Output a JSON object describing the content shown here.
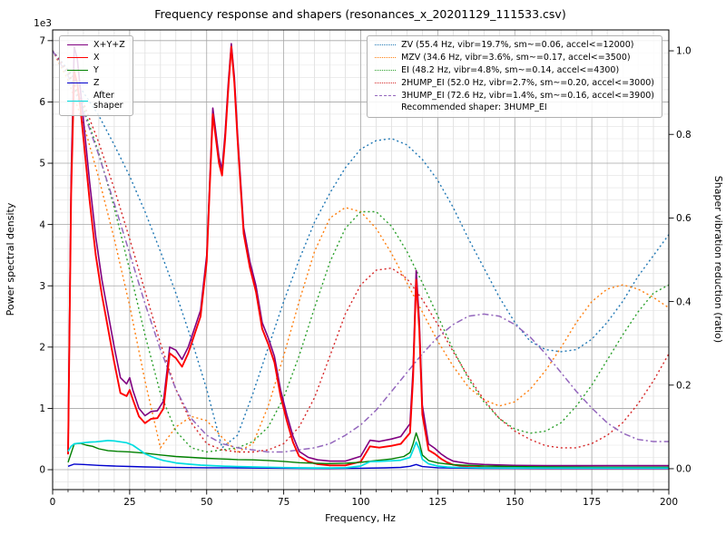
{
  "chart_data": {
    "type": "line",
    "title": "Frequency response and shapers (resonances_x_20201129_111533.csv)",
    "xlabel": "Frequency, Hz",
    "ylabel_left": "Power spectral density",
    "ylabel_right": "Shaper vibration reduction (ratio)",
    "offset_text": "1e3",
    "xlim": [
      0,
      200
    ],
    "x_major_ticks": [
      0,
      25,
      50,
      75,
      100,
      125,
      150,
      175,
      200
    ],
    "x_minor_step": 5,
    "ylim_left": [
      -325,
      7175
    ],
    "y_major_ticks_left": [
      0,
      1000,
      2000,
      3000,
      4000,
      5000,
      6000,
      7000
    ],
    "y_tick_labels_left": [
      "0",
      "1",
      "2",
      "3",
      "4",
      "5",
      "6",
      "7"
    ],
    "y_minor_step_left": 200,
    "ylim_right": [
      -0.05,
      1.05
    ],
    "y_major_ticks_right": [
      0.0,
      0.2,
      0.4,
      0.6,
      0.8,
      1.0
    ],
    "y_tick_labels_right": [
      "0.0",
      "0.2",
      "0.4",
      "0.6",
      "0.8",
      "1.0"
    ],
    "grid": "both",
    "legend_psd_position": "upper-left",
    "legend_shaper_position": "upper-right",
    "recommended_label": "Recommended shaper: 3HUMP_EI",
    "psd_series": [
      {
        "name": "X+Y+Z",
        "legend": "X+Y+Z",
        "color": "#800080",
        "style": "solid",
        "w": 1.6,
        "x": [
          5,
          6,
          7,
          8,
          9,
          10,
          12,
          14,
          16,
          18,
          20,
          22,
          24,
          25,
          26,
          28,
          30,
          32,
          34,
          36,
          38,
          40,
          42,
          44,
          46,
          48,
          50,
          51,
          52,
          53,
          54,
          55,
          56,
          57,
          58,
          59,
          60,
          62,
          64,
          66,
          68,
          70,
          72,
          74,
          76,
          78,
          80,
          83,
          86,
          90,
          95,
          100,
          103,
          106,
          110,
          113,
          116,
          117,
          118,
          119,
          120,
          122,
          124,
          126,
          128,
          130,
          135,
          140,
          150,
          160,
          170,
          180,
          190,
          200
        ],
        "y": [
          300,
          4800,
          6900,
          6700,
          6200,
          5700,
          4700,
          3800,
          3100,
          2550,
          2000,
          1500,
          1400,
          1500,
          1300,
          1000,
          880,
          950,
          960,
          1120,
          2000,
          1950,
          1800,
          2000,
          2300,
          2600,
          3500,
          4700,
          5900,
          5500,
          5100,
          4900,
          5500,
          6300,
          6950,
          6400,
          5500,
          3950,
          3400,
          3000,
          2400,
          2150,
          1850,
          1300,
          900,
          550,
          300,
          200,
          160,
          140,
          140,
          220,
          480,
          460,
          500,
          540,
          750,
          1650,
          3250,
          2450,
          1050,
          420,
          350,
          260,
          190,
          140,
          100,
          85,
          70,
          65,
          65,
          65,
          65,
          65
        ]
      },
      {
        "name": "X",
        "legend": "X",
        "color": "#ff0000",
        "style": "solid",
        "w": 1.9,
        "x": [
          5,
          6,
          7,
          8,
          9,
          10,
          12,
          14,
          16,
          18,
          20,
          22,
          24,
          25,
          26,
          28,
          30,
          32,
          34,
          36,
          38,
          40,
          42,
          44,
          46,
          48,
          50,
          51,
          52,
          53,
          54,
          55,
          56,
          57,
          58,
          59,
          60,
          62,
          64,
          66,
          68,
          70,
          72,
          74,
          76,
          78,
          80,
          83,
          86,
          90,
          95,
          100,
          103,
          106,
          110,
          113,
          116,
          117,
          118,
          119,
          120,
          122,
          124,
          126,
          128,
          130,
          135,
          140,
          150,
          160,
          170,
          180,
          190,
          200
        ],
        "y": [
          250,
          4500,
          6500,
          6300,
          5900,
          5400,
          4400,
          3500,
          2850,
          2300,
          1750,
          1250,
          1200,
          1300,
          1150,
          870,
          760,
          830,
          840,
          1000,
          1900,
          1820,
          1680,
          1900,
          2200,
          2500,
          3400,
          4600,
          5800,
          5400,
          5000,
          4800,
          5400,
          6200,
          6900,
          6300,
          5400,
          3850,
          3300,
          2900,
          2300,
          2050,
          1750,
          1200,
          800,
          450,
          220,
          130,
          90,
          70,
          70,
          130,
          380,
          360,
          390,
          420,
          600,
          1500,
          3100,
          2300,
          900,
          320,
          260,
          180,
          120,
          80,
          45,
          35,
          28,
          26,
          25,
          25,
          25,
          25
        ]
      },
      {
        "name": "Y",
        "legend": "Y",
        "color": "#008000",
        "style": "solid",
        "w": 1.4,
        "x": [
          5,
          7,
          9,
          11,
          13,
          15,
          18,
          21,
          25,
          30,
          35,
          40,
          45,
          50,
          55,
          60,
          65,
          70,
          75,
          80,
          85,
          90,
          95,
          100,
          105,
          110,
          114,
          116,
          117,
          118,
          119,
          120,
          122,
          125,
          130,
          140,
          150,
          160,
          170,
          180,
          190,
          200
        ],
        "y": [
          120,
          420,
          430,
          400,
          380,
          340,
          310,
          300,
          290,
          270,
          240,
          215,
          200,
          185,
          175,
          165,
          160,
          150,
          135,
          115,
          105,
          100,
          105,
          120,
          150,
          175,
          215,
          280,
          420,
          600,
          450,
          240,
          150,
          110,
          80,
          60,
          50,
          45,
          42,
          40,
          40,
          40
        ]
      },
      {
        "name": "Z",
        "legend": "Z",
        "color": "#0000cd",
        "style": "solid",
        "w": 1.4,
        "x": [
          5,
          7,
          10,
          15,
          20,
          25,
          30,
          35,
          40,
          50,
          60,
          70,
          80,
          90,
          100,
          108,
          113,
          116,
          118,
          120,
          125,
          130,
          140,
          160,
          180,
          200
        ],
        "y": [
          55,
          90,
          85,
          70,
          60,
          52,
          45,
          40,
          36,
          32,
          30,
          26,
          22,
          20,
          24,
          30,
          38,
          55,
          85,
          50,
          32,
          27,
          22,
          20,
          20,
          20
        ]
      },
      {
        "name": "After shaper",
        "legend": "After\nshaper",
        "color": "#00dde0",
        "style": "solid",
        "w": 1.7,
        "x": [
          5,
          6,
          7,
          8,
          10,
          12,
          14,
          16,
          18,
          20,
          22,
          24,
          26,
          28,
          30,
          32,
          34,
          36,
          38,
          40,
          44,
          48,
          52,
          56,
          60,
          65,
          70,
          75,
          80,
          85,
          90,
          95,
          100,
          103,
          106,
          110,
          113,
          116,
          117,
          118,
          119,
          120,
          122,
          125,
          128,
          130,
          135,
          140,
          150,
          160,
          170,
          180,
          190,
          200
        ],
        "y": [
          300,
          380,
          420,
          430,
          440,
          450,
          455,
          465,
          475,
          470,
          455,
          440,
          400,
          330,
          260,
          215,
          180,
          150,
          130,
          110,
          90,
          75,
          65,
          57,
          50,
          45,
          40,
          35,
          30,
          28,
          28,
          32,
          60,
          130,
          135,
          145,
          155,
          200,
          320,
          450,
          340,
          170,
          95,
          60,
          45,
          40,
          34,
          30,
          28,
          27,
          27,
          27,
          27,
          27
        ]
      }
    ],
    "shaper_x": [
      0,
      5,
      10,
      15,
      20,
      25,
      30,
      35,
      40,
      45,
      50,
      55,
      60,
      65,
      70,
      75,
      80,
      85,
      90,
      95,
      100,
      105,
      110,
      115,
      120,
      125,
      130,
      135,
      140,
      145,
      150,
      155,
      160,
      165,
      170,
      175,
      180,
      185,
      190,
      195,
      200
    ],
    "shaper_series": [
      {
        "name": "ZV",
        "label": "ZV (55.4 Hz, vibr=19.7%, sm~=0.06, accel<=12000)",
        "color": "#1f77b4",
        "style": "dotted",
        "w": 1.4,
        "y": [
          1.0,
          0.955,
          0.9,
          0.845,
          0.775,
          0.7,
          0.615,
          0.52,
          0.42,
          0.31,
          0.19,
          0.05,
          0.08,
          0.18,
          0.29,
          0.4,
          0.5,
          0.59,
          0.66,
          0.72,
          0.765,
          0.785,
          0.79,
          0.775,
          0.74,
          0.69,
          0.625,
          0.55,
          0.48,
          0.41,
          0.35,
          0.305,
          0.285,
          0.28,
          0.285,
          0.31,
          0.35,
          0.4,
          0.46,
          0.51,
          0.56
        ]
      },
      {
        "name": "MZV",
        "label": "MZV (34.6 Hz, vibr=3.6%, sm~=0.17, accel<=3500)",
        "color": "#ff7f0e",
        "style": "dotted",
        "w": 1.4,
        "y": [
          1.0,
          0.93,
          0.825,
          0.695,
          0.55,
          0.39,
          0.21,
          0.05,
          0.1,
          0.125,
          0.115,
          0.075,
          0.04,
          0.06,
          0.15,
          0.27,
          0.4,
          0.52,
          0.6,
          0.625,
          0.615,
          0.575,
          0.515,
          0.445,
          0.375,
          0.305,
          0.245,
          0.195,
          0.165,
          0.15,
          0.16,
          0.19,
          0.235,
          0.29,
          0.35,
          0.4,
          0.43,
          0.44,
          0.43,
          0.41,
          0.385
        ]
      },
      {
        "name": "EI",
        "label": "EI (48.2 Hz, vibr=4.8%, sm~=0.14, accel<=4300)",
        "color": "#2ca02c",
        "style": "dotted",
        "w": 1.4,
        "y": [
          1.0,
          0.945,
          0.865,
          0.755,
          0.625,
          0.475,
          0.32,
          0.18,
          0.09,
          0.05,
          0.04,
          0.045,
          0.05,
          0.065,
          0.1,
          0.17,
          0.27,
          0.385,
          0.495,
          0.575,
          0.615,
          0.615,
          0.58,
          0.52,
          0.445,
          0.365,
          0.285,
          0.215,
          0.16,
          0.12,
          0.095,
          0.085,
          0.09,
          0.11,
          0.15,
          0.2,
          0.26,
          0.32,
          0.375,
          0.42,
          0.44
        ]
      },
      {
        "name": "2HUMP_EI",
        "label": "2HUMP_EI (52.0 Hz, vibr=2.7%, sm~=0.20, accel<=3000)",
        "color": "#d62728",
        "style": "dotted",
        "w": 1.4,
        "y": [
          1.0,
          0.95,
          0.875,
          0.78,
          0.67,
          0.55,
          0.425,
          0.3,
          0.19,
          0.11,
          0.06,
          0.045,
          0.04,
          0.04,
          0.045,
          0.06,
          0.1,
          0.17,
          0.27,
          0.37,
          0.44,
          0.475,
          0.48,
          0.455,
          0.405,
          0.345,
          0.28,
          0.22,
          0.165,
          0.12,
          0.09,
          0.07,
          0.055,
          0.05,
          0.05,
          0.06,
          0.08,
          0.11,
          0.155,
          0.21,
          0.275
        ]
      },
      {
        "name": "3HUMP_EI",
        "label": "3HUMP_EI (72.6 Hz, vibr=1.4%, sm~=0.16, accel<=3900)",
        "color": "#9467bd",
        "style": "dashdot",
        "w": 1.5,
        "y": [
          1.0,
          0.94,
          0.855,
          0.75,
          0.635,
          0.515,
          0.395,
          0.285,
          0.19,
          0.12,
          0.08,
          0.06,
          0.05,
          0.045,
          0.04,
          0.04,
          0.045,
          0.05,
          0.06,
          0.08,
          0.105,
          0.14,
          0.185,
          0.23,
          0.275,
          0.315,
          0.345,
          0.365,
          0.37,
          0.365,
          0.345,
          0.315,
          0.275,
          0.23,
          0.185,
          0.145,
          0.11,
          0.085,
          0.07,
          0.065,
          0.065
        ]
      }
    ]
  }
}
